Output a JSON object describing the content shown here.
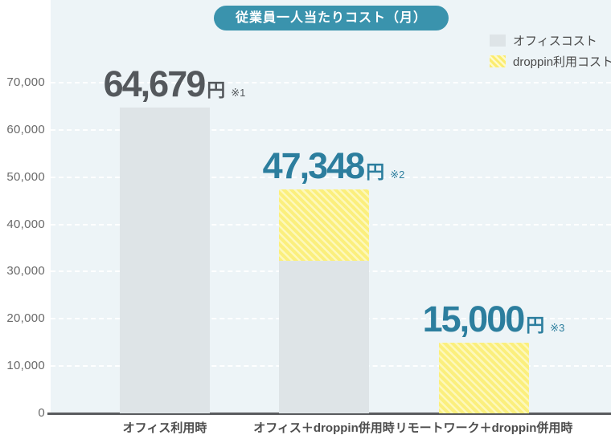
{
  "title_badge": "従業員一人当たりコスト（月）",
  "legend": {
    "position": "top-right",
    "items": [
      {
        "label": "オフィスコスト",
        "swatch": "office-gray"
      },
      {
        "label": "droppin利用コスト",
        "swatch": "droppin-yellow-stripes"
      }
    ]
  },
  "chart_data": {
    "type": "bar",
    "stacked": true,
    "title": "従業員一人当たりコスト（月）",
    "xlabel": "",
    "ylabel": "",
    "grid": true,
    "legend_position": "top-right",
    "categories": [
      "オフィス利用時",
      "オフィス＋droppin併用時",
      "リモートワーク＋droppin併用時"
    ],
    "series": [
      {
        "name": "オフィスコスト",
        "pattern": "solid",
        "values": [
          64679,
          32348,
          0
        ]
      },
      {
        "name": "droppin利用コスト",
        "pattern": "diagonal-stripes",
        "values": [
          0,
          15000,
          15000
        ]
      }
    ],
    "totals": [
      {
        "value": 64679,
        "text": "64,679",
        "unit": "円",
        "footnote": "※1",
        "emphasis": "dark"
      },
      {
        "value": 47348,
        "text": "47,348",
        "unit": "円",
        "footnote": "※2",
        "emphasis": "teal"
      },
      {
        "value": 15000,
        "text": "15,000",
        "unit": "円",
        "footnote": "※3",
        "emphasis": "teal"
      }
    ],
    "y_axis": {
      "min": 0,
      "max": 70000,
      "tick_step": 10000,
      "ticks": [
        {
          "value": 0,
          "label": "0"
        },
        {
          "value": 10000,
          "label": "10,000"
        },
        {
          "value": 20000,
          "label": "20,000"
        },
        {
          "value": 30000,
          "label": "30,000"
        },
        {
          "value": 40000,
          "label": "40,000"
        },
        {
          "value": 50000,
          "label": "50,000"
        },
        {
          "value": 60000,
          "label": "60,000"
        },
        {
          "value": 70000,
          "label": "70,000"
        }
      ]
    }
  },
  "colors": {
    "plot_background": "#EDF4F7",
    "gridline": "#FFFFFF",
    "axis_line": "#595B5E",
    "office_bar": "#DEE4E7",
    "droppin_bar_base": "#FBEF7D",
    "droppin_bar_stripe": "#FDF8BA",
    "badge_background": "#3A93AD",
    "badge_text": "#FFFFFF",
    "total_dark": "#54585C",
    "total_teal": "#2C7E9E",
    "axis_tick_text": "#6A6A6A",
    "category_text": "#4D4D4D",
    "legend_text": "#4A4A4A"
  }
}
